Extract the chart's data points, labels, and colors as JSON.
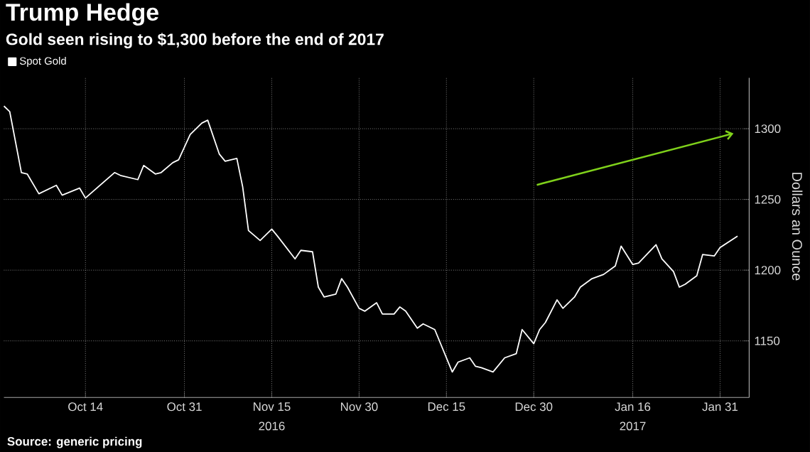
{
  "chart_data": {
    "type": "line",
    "title": "Trump Hedge",
    "subtitle": "Gold seen rising to $1,300 before the end of 2017",
    "ylabel": "Dollars an Ounce",
    "annotations": [
      "2016",
      "2017",
      "Source: generic pricing"
    ],
    "xlim": [
      "2016-09-30",
      "2017-02-05"
    ],
    "xticks": [
      {
        "value": "2016-10-14",
        "label": "Oct 14"
      },
      {
        "value": "2016-10-31",
        "label": "Oct 31"
      },
      {
        "value": "2016-11-15",
        "label": "Nov 15"
      },
      {
        "value": "2016-11-30",
        "label": "Nov 30"
      },
      {
        "value": "2016-12-15",
        "label": "Dec 15"
      },
      {
        "value": "2016-12-30",
        "label": "Dec 30"
      },
      {
        "value": "2017-01-16",
        "label": "Jan 16"
      },
      {
        "value": "2017-01-31",
        "label": "Jan 31"
      }
    ],
    "ylim": [
      1110,
      1336
    ],
    "yticks": [
      1150,
      1200,
      1250,
      1300
    ],
    "grid": true,
    "legend": "top left",
    "series": [
      {
        "name": "Spot Gold",
        "color": "#ffffff",
        "x": [
          "2016-09-30",
          "2016-10-01",
          "2016-10-03",
          "2016-10-04",
          "2016-10-06",
          "2016-10-09",
          "2016-10-10",
          "2016-10-13",
          "2016-10-14",
          "2016-10-19",
          "2016-10-20",
          "2016-10-23",
          "2016-10-24",
          "2016-10-26",
          "2016-10-27",
          "2016-10-29",
          "2016-10-30",
          "2016-11-01",
          "2016-11-03",
          "2016-11-04",
          "2016-11-06",
          "2016-11-07",
          "2016-11-09",
          "2016-11-10",
          "2016-11-11",
          "2016-11-13",
          "2016-11-15",
          "2016-11-16",
          "2016-11-19",
          "2016-11-20",
          "2016-11-22",
          "2016-11-23",
          "2016-11-24",
          "2016-11-26",
          "2016-11-27",
          "2016-11-28",
          "2016-11-30",
          "2016-12-01",
          "2016-12-03",
          "2016-12-04",
          "2016-12-06",
          "2016-12-07",
          "2016-12-08",
          "2016-12-10",
          "2016-12-11",
          "2016-12-13",
          "2016-12-16",
          "2016-12-17",
          "2016-12-19",
          "2016-12-20",
          "2016-12-21",
          "2016-12-23",
          "2016-12-25",
          "2016-12-27",
          "2016-12-28",
          "2016-12-30",
          "2016-12-31",
          "2017-01-01",
          "2017-01-03",
          "2017-01-04",
          "2017-01-06",
          "2017-01-07",
          "2017-01-09",
          "2017-01-11",
          "2017-01-13",
          "2017-01-14",
          "2017-01-16",
          "2017-01-17",
          "2017-01-20",
          "2017-01-21",
          "2017-01-23",
          "2017-01-24",
          "2017-01-25",
          "2017-01-27",
          "2017-01-28",
          "2017-01-30",
          "2017-01-31",
          "2017-02-03"
        ],
        "values": [
          1316,
          1312,
          1269,
          1268,
          1254,
          1260,
          1253,
          1258,
          1251,
          1269,
          1267,
          1264,
          1274,
          1268,
          1269,
          1276,
          1278,
          1296,
          1304,
          1306,
          1282,
          1277,
          1279,
          1259,
          1228,
          1221,
          1229,
          1224,
          1208,
          1214,
          1213,
          1188,
          1181,
          1183,
          1194,
          1188,
          1173,
          1171,
          1177,
          1169,
          1169,
          1174,
          1171,
          1159,
          1162,
          1158,
          1128,
          1135,
          1138,
          1132,
          1131,
          1128,
          1138,
          1141,
          1158,
          1148,
          1158,
          1163,
          1179,
          1173,
          1181,
          1188,
          1194,
          1197,
          1203,
          1217,
          1204,
          1205,
          1218,
          1208,
          1199,
          1188,
          1190,
          1196,
          1211,
          1210,
          1216,
          1224
        ]
      }
    ]
  }
}
